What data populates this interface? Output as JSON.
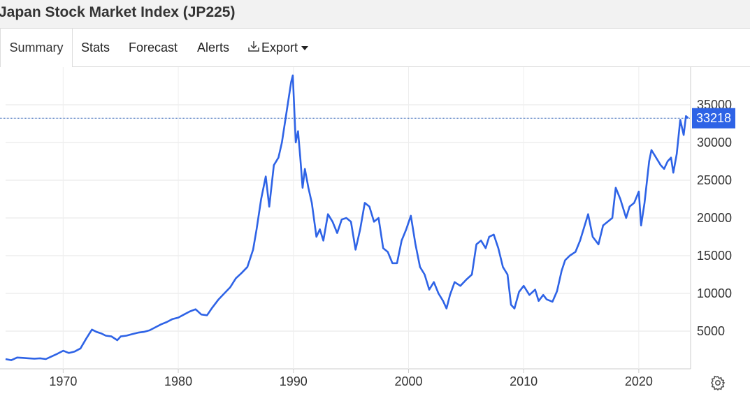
{
  "header": {
    "title": "Japan Stock Market Index (JP225)"
  },
  "tabs": [
    {
      "label": "Summary"
    },
    {
      "label": "Stats"
    },
    {
      "label": "Forecast"
    },
    {
      "label": "Alerts"
    },
    {
      "label": "Export"
    }
  ],
  "icons": {
    "export": "download-icon",
    "menu": "caret-down-icon",
    "settings": "gear-icon"
  },
  "colors": {
    "line": "#2e63e6",
    "last_value_bg": "#2e63e6",
    "grid": "#e6e6e6"
  },
  "chart_data": {
    "type": "line",
    "title": "",
    "xlabel": "",
    "ylabel": "",
    "xlim": [
      1965,
      2024.5
    ],
    "ylim": [
      0,
      40000
    ],
    "x_ticks": [
      1970,
      1980,
      1990,
      2000,
      2010,
      2020
    ],
    "y_ticks": [
      5000,
      10000,
      15000,
      20000,
      25000,
      30000,
      35000
    ],
    "grid": true,
    "last_value": 33218,
    "series": [
      {
        "x": [
          1965.0,
          1965.5,
          1966.0,
          1966.5,
          1967.0,
          1967.5,
          1968.0,
          1968.5,
          1969.0,
          1969.5,
          1970.0,
          1970.5,
          1971.0,
          1971.5,
          1972.0,
          1972.5,
          1972.9,
          1973.3,
          1973.7,
          1974.2,
          1974.7,
          1975.0,
          1975.5,
          1976.0,
          1976.5,
          1977.0,
          1977.5,
          1978.0,
          1978.5,
          1979.0,
          1979.5,
          1980.0,
          1980.5,
          1981.0,
          1981.5,
          1982.0,
          1982.5,
          1982.9,
          1983.5,
          1984.0,
          1984.5,
          1985.0,
          1985.5,
          1986.0,
          1986.5,
          1986.8,
          1987.2,
          1987.6,
          1987.9,
          1988.3,
          1988.7,
          1989.0,
          1989.4,
          1989.8,
          1989.95,
          1990.2,
          1990.4,
          1990.6,
          1990.8,
          1991.0,
          1991.3,
          1991.6,
          1992.0,
          1992.3,
          1992.6,
          1993.0,
          1993.4,
          1993.8,
          1994.2,
          1994.6,
          1995.0,
          1995.4,
          1995.8,
          1996.2,
          1996.6,
          1997.0,
          1997.4,
          1997.8,
          1998.2,
          1998.6,
          1999.0,
          1999.4,
          1999.8,
          2000.2,
          2000.6,
          2001.0,
          2001.4,
          2001.8,
          2002.2,
          2002.6,
          2003.0,
          2003.3,
          2003.6,
          2004.0,
          2004.5,
          2005.0,
          2005.5,
          2005.9,
          2006.3,
          2006.7,
          2007.0,
          2007.4,
          2007.8,
          2008.2,
          2008.6,
          2008.9,
          2009.2,
          2009.6,
          2010.0,
          2010.5,
          2011.0,
          2011.3,
          2011.7,
          2012.0,
          2012.5,
          2012.9,
          2013.3,
          2013.6,
          2014.0,
          2014.5,
          2014.9,
          2015.3,
          2015.6,
          2016.0,
          2016.5,
          2016.9,
          2017.3,
          2017.7,
          2018.0,
          2018.4,
          2018.9,
          2019.2,
          2019.6,
          2020.0,
          2020.2,
          2020.5,
          2020.9,
          2021.1,
          2021.5,
          2021.9,
          2022.2,
          2022.5,
          2022.8,
          2023.0,
          2023.3,
          2023.6,
          2023.9,
          2024.1,
          2024.3
        ],
        "values": [
          1300,
          1150,
          1500,
          1450,
          1400,
          1350,
          1400,
          1300,
          1650,
          2000,
          2400,
          2100,
          2300,
          2700,
          4000,
          5200,
          4900,
          4700,
          4400,
          4300,
          3800,
          4300,
          4400,
          4600,
          4800,
          4900,
          5100,
          5500,
          5900,
          6200,
          6600,
          6800,
          7200,
          7600,
          7900,
          7200,
          7100,
          8000,
          9200,
          10000,
          10800,
          12000,
          12700,
          13500,
          15800,
          18500,
          22500,
          25500,
          21500,
          27000,
          28000,
          30000,
          34000,
          38000,
          38900,
          30000,
          31500,
          28000,
          24000,
          26500,
          24000,
          22000,
          17500,
          18500,
          17000,
          20500,
          19500,
          18000,
          19800,
          20000,
          19500,
          15800,
          18500,
          22000,
          21500,
          19500,
          20000,
          16000,
          15500,
          14000,
          14000,
          17000,
          18500,
          20300,
          16500,
          13500,
          12500,
          10500,
          11500,
          10000,
          9000,
          8000,
          9800,
          11500,
          11000,
          11800,
          12500,
          16500,
          17000,
          16000,
          17500,
          17800,
          16000,
          13500,
          12500,
          8500,
          8000,
          10200,
          11000,
          9800,
          10500,
          9000,
          9800,
          9200,
          8900,
          10300,
          13000,
          14400,
          15000,
          15500,
          17000,
          19000,
          20500,
          17500,
          16500,
          19000,
          19500,
          20000,
          24000,
          22500,
          20000,
          21500,
          22000,
          23500,
          19000,
          22000,
          27500,
          29000,
          28000,
          27000,
          26500,
          27500,
          28000,
          26000,
          28500,
          33000,
          31000,
          33500,
          33218
        ]
      }
    ]
  }
}
